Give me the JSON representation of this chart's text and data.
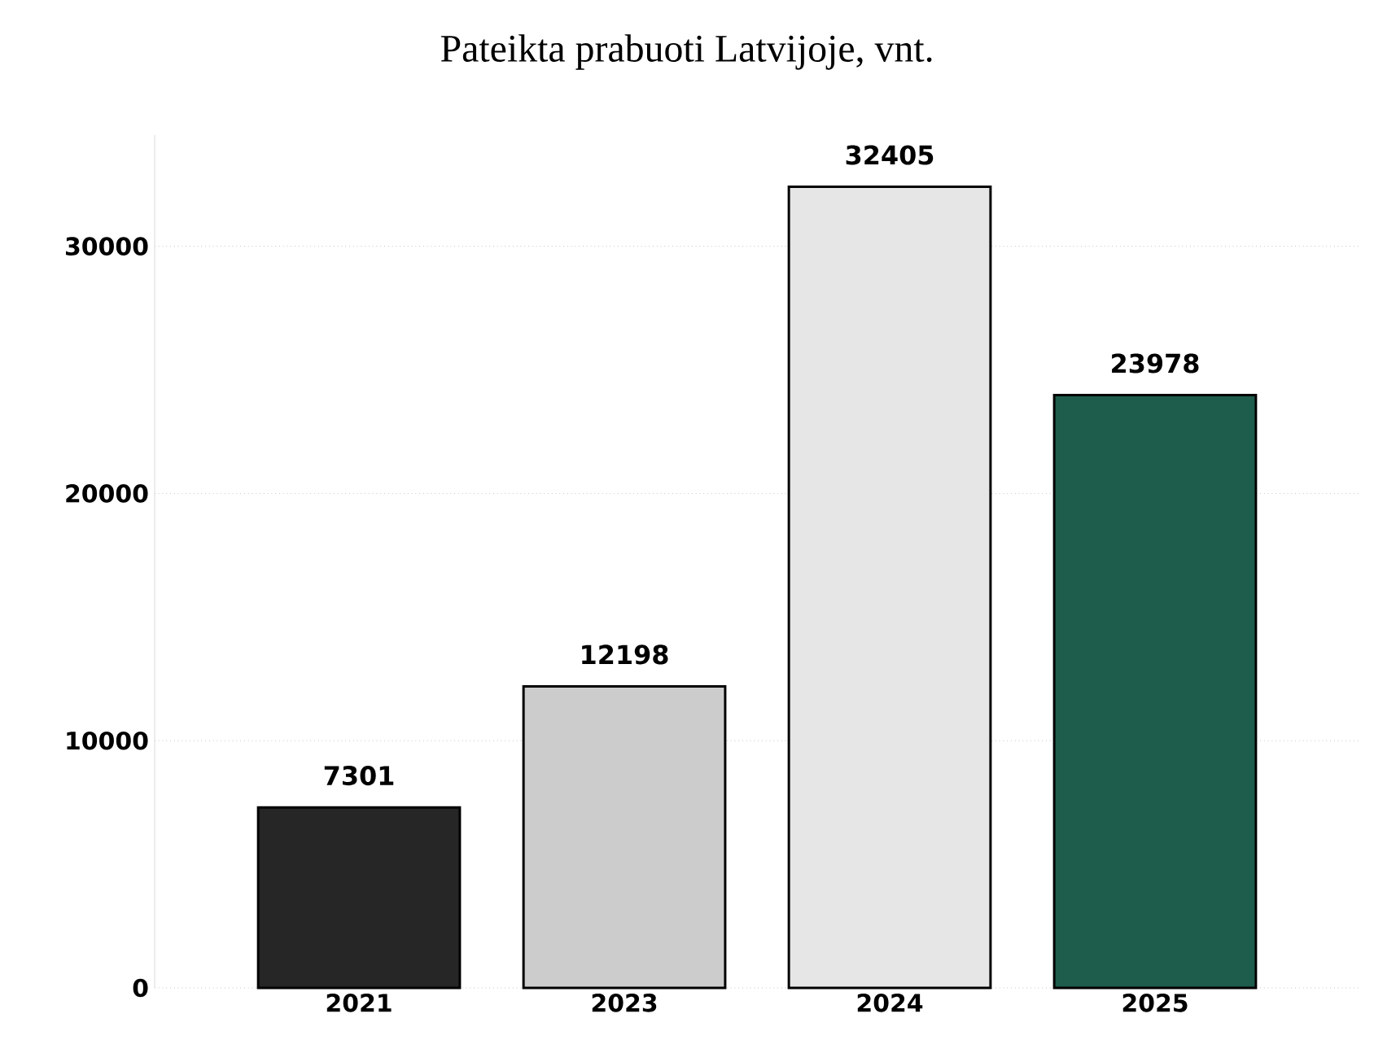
{
  "chart_data": {
    "type": "bar",
    "title": "Pateikta prabuoti Latvijoje, vnt.",
    "categories": [
      "2021",
      "2023",
      "2024",
      "2025"
    ],
    "values": [
      7301,
      12198,
      32405,
      23978
    ],
    "colors": [
      "#262626",
      "#cccccc",
      "#e6e6e6",
      "#1e5c4c"
    ],
    "ylim": [
      0,
      34500
    ],
    "yticks": [
      0,
      10000,
      20000,
      30000
    ],
    "grid": "y",
    "data_labels": true
  }
}
